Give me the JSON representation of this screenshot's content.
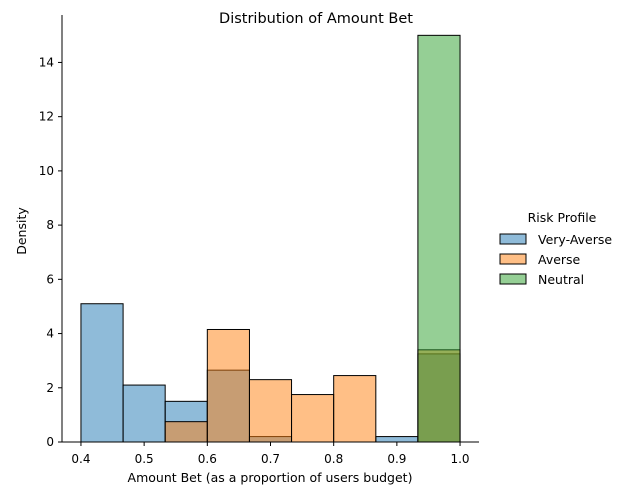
{
  "chart_data": {
    "type": "histogram",
    "title": "Distribution of Amount Bet",
    "xlabel": "Amount Bet (as a proportion of users budget)",
    "ylabel": "Density",
    "xlim": [
      0.37,
      1.03
    ],
    "ylim": [
      0,
      15.75
    ],
    "xticks": [
      0.4,
      0.5,
      0.6,
      0.7,
      0.8,
      0.9,
      1.0
    ],
    "xtick_labels": [
      "0.4",
      "0.5",
      "0.6",
      "0.7",
      "0.8",
      "0.9",
      "1.0"
    ],
    "yticks": [
      0,
      2,
      4,
      6,
      8,
      10,
      12,
      14
    ],
    "ytick_labels": [
      "0",
      "2",
      "4",
      "6",
      "8",
      "10",
      "12",
      "14"
    ],
    "bin_edges": [
      0.4,
      0.4667,
      0.5333,
      0.6,
      0.6667,
      0.7333,
      0.8,
      0.8667,
      0.9333,
      1.0
    ],
    "legend_title": "Risk Profile",
    "legend_position": "right",
    "grid": false,
    "series": [
      {
        "name": "Very-Averse",
        "color": "#1f77b4",
        "values": [
          5.1,
          2.1,
          1.5,
          2.65,
          0.2,
          0.0,
          0.0,
          0.2,
          3.25
        ]
      },
      {
        "name": "Averse",
        "color": "#ff7f0e",
        "values": [
          0.0,
          0.0,
          0.75,
          4.15,
          2.3,
          1.75,
          2.45,
          0.0,
          3.4
        ]
      },
      {
        "name": "Neutral",
        "color": "#2ca02c",
        "values": [
          0.0,
          0.0,
          0.0,
          0.0,
          0.0,
          0.0,
          0.0,
          0.0,
          15.0
        ]
      }
    ]
  }
}
